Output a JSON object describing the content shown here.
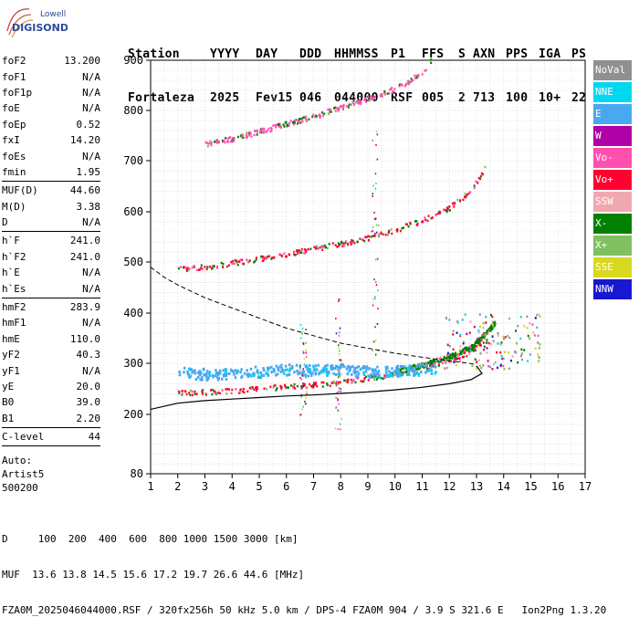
{
  "logo": {
    "line1": "Lowell",
    "line2": "DIGISONDE"
  },
  "header": {
    "labels": [
      "Station",
      "YYYY",
      "DAY",
      "DDD",
      "HHMMSS",
      "P1",
      "FFS",
      "S",
      "AXN",
      "PPS",
      "IGA",
      "PS"
    ],
    "values": [
      "Fortaleza",
      "2025",
      "Fev15",
      "046",
      "044000",
      "RSF",
      "005",
      "2",
      "713",
      "100",
      "10+",
      "22"
    ]
  },
  "params": [
    {
      "group": [
        {
          "name": "foF2",
          "value": "13.200"
        },
        {
          "name": "foF1",
          "value": "N/A"
        },
        {
          "name": "foF1p",
          "value": "N/A"
        },
        {
          "name": "foE",
          "value": "N/A"
        },
        {
          "name": "foEp",
          "value": "0.52"
        },
        {
          "name": "fxI",
          "value": "14.20"
        },
        {
          "name": "foEs",
          "value": "N/A"
        },
        {
          "name": "fmin",
          "value": "1.95"
        }
      ]
    },
    {
      "group": [
        {
          "name": "MUF(D)",
          "value": "44.60"
        },
        {
          "name": "M(D)",
          "value": "3.38"
        },
        {
          "name": "D",
          "value": "N/A"
        }
      ]
    },
    {
      "group": [
        {
          "name": "h`F",
          "value": "241.0"
        },
        {
          "name": "h`F2",
          "value": "241.0"
        },
        {
          "name": "h`E",
          "value": "N/A"
        },
        {
          "name": "h`Es",
          "value": "N/A"
        }
      ]
    },
    {
      "group": [
        {
          "name": "hmF2",
          "value": "283.9"
        },
        {
          "name": "hmF1",
          "value": "N/A"
        },
        {
          "name": "hmE",
          "value": "110.0"
        },
        {
          "name": "yF2",
          "value": "40.3"
        },
        {
          "name": "yF1",
          "value": "N/A"
        },
        {
          "name": "yE",
          "value": "20.0"
        },
        {
          "name": "B0",
          "value": "39.0"
        },
        {
          "name": "B1",
          "value": "2.20"
        }
      ]
    },
    {
      "group": [
        {
          "name": "C-level",
          "value": "44"
        }
      ]
    }
  ],
  "auto": {
    "line1": "Auto:",
    "line2": "Artist5",
    "line3": "500200"
  },
  "legend": [
    {
      "label": "NoVal",
      "color": "#909090"
    },
    {
      "label": "NNE",
      "color": "#00d8f0"
    },
    {
      "label": "E",
      "color": "#4aa8f0"
    },
    {
      "label": "W",
      "color": "#b000a8"
    },
    {
      "label": "Vo-",
      "color": "#ff50b0"
    },
    {
      "label": "Vo+",
      "color": "#ff0030"
    },
    {
      "label": "SSW",
      "color": "#f0a8b0"
    },
    {
      "label": "X-",
      "color": "#008000"
    },
    {
      "label": "X+",
      "color": "#80c060"
    },
    {
      "label": "SSE",
      "color": "#d8d820"
    },
    {
      "label": "NNW",
      "color": "#1818d0"
    }
  ],
  "footer": {
    "d_label": "D",
    "d_values": "100  200  400  600  800 1000 1500 3000 [km]",
    "muf_label": "MUF",
    "muf_values": "13.6 13.8 14.5 15.6 17.2 19.7 26.6 44.6 [MHz]",
    "file_line": "FZA0M_2025046044000.RSF / 320fx256h 50 kHz 5.0 km / DPS-4 FZA0M 904 / 3.9 S 321.6 E   Ion2Png 1.3.20"
  },
  "chart_data": {
    "type": "scatter",
    "xlim": [
      1,
      17
    ],
    "ylim": [
      80,
      900
    ],
    "x_ticks": [
      1,
      2,
      3,
      4,
      5,
      6,
      7,
      8,
      9,
      10,
      11,
      12,
      13,
      14,
      15,
      16,
      17
    ],
    "y_ticks": [
      80,
      200,
      300,
      400,
      500,
      600,
      700,
      800,
      900
    ],
    "grid": true,
    "traces": [
      {
        "name": "F2 O-trace",
        "color": "#ff0030",
        "x": [
          2.0,
          3.0,
          4.0,
          5.0,
          6.0,
          7.0,
          8.0,
          9.0,
          10.0,
          11.0,
          11.8,
          12.5,
          13.0,
          13.4
        ],
        "y": [
          243,
          245,
          248,
          252,
          256,
          260,
          265,
          272,
          280,
          292,
          305,
          320,
          335,
          350
        ]
      },
      {
        "name": "F2 X-trace",
        "color": "#008000",
        "x": [
          10.0,
          11.0,
          12.0,
          12.8,
          13.3,
          13.7
        ],
        "y": [
          285,
          298,
          315,
          335,
          360,
          385
        ]
      },
      {
        "name": "E-region band",
        "color": "#4aa8f0",
        "x": [
          2.0,
          3.0,
          4.0,
          5.0,
          6.0,
          7.0,
          8.0,
          9.0,
          10.0,
          11.0,
          11.5
        ],
        "y": [
          285,
          280,
          282,
          285,
          290,
          288,
          290,
          285,
          287,
          290,
          292
        ]
      },
      {
        "name": "2F multi-hop",
        "color": "#ff0030",
        "x": [
          2.0,
          3.0,
          4.0,
          5.0,
          6.0,
          7.0,
          8.0,
          9.0,
          10.0,
          11.0,
          12.0,
          12.5,
          13.0,
          13.3
        ],
        "y": [
          488,
          492,
          500,
          508,
          518,
          528,
          538,
          550,
          565,
          585,
          610,
          630,
          660,
          690
        ]
      },
      {
        "name": "3F multi-hop",
        "color": "#ff50b0",
        "x": [
          3.0,
          4.0,
          5.0,
          6.0,
          7.0,
          8.0,
          9.0,
          10.0,
          10.5,
          11.0,
          11.3
        ],
        "y": [
          735,
          745,
          760,
          775,
          790,
          808,
          825,
          845,
          860,
          880,
          900
        ]
      }
    ],
    "profile_solid": {
      "x": [
        1.0,
        2.0,
        3.0,
        4.0,
        5.0,
        6.0,
        7.0,
        8.0,
        9.0,
        10.0,
        11.0,
        12.0,
        12.8,
        13.2,
        13.0
      ],
      "y": [
        210,
        222,
        227,
        230,
        233,
        236,
        238,
        241,
        244,
        248,
        253,
        260,
        268,
        280,
        295
      ]
    },
    "profile_dashed": {
      "x": [
        1.0,
        1.5,
        2.0,
        3.0,
        4.0,
        5.0,
        6.0,
        7.0,
        8.0,
        9.0,
        10.0,
        11.0,
        12.0,
        13.0
      ],
      "y": [
        490,
        470,
        455,
        430,
        410,
        390,
        370,
        355,
        340,
        330,
        320,
        312,
        305,
        298
      ]
    }
  }
}
